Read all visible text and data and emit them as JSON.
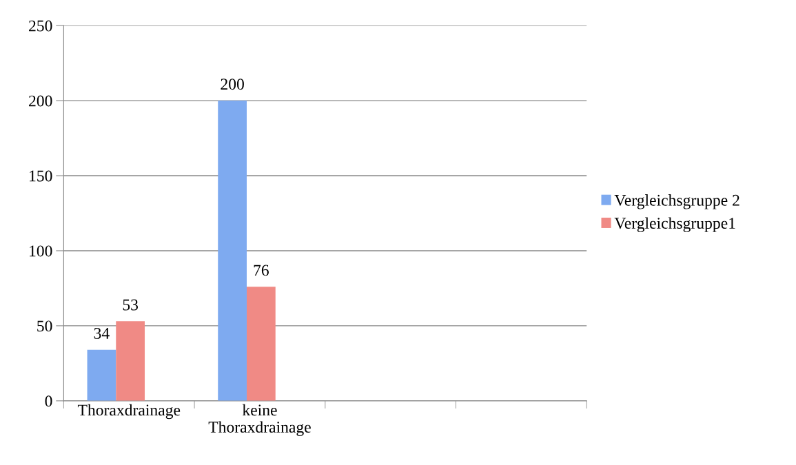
{
  "chart_data": {
    "type": "bar",
    "categories": [
      "Thoraxdrainage",
      "keine\nThoraxdrainage",
      null,
      null
    ],
    "series": [
      {
        "name": "Vergleichsgruppe 2",
        "color": "#7eaaf0",
        "values": [
          34,
          200,
          null,
          null
        ]
      },
      {
        "name": "Vergleichsgruppe1",
        "color": "#f08a85",
        "values": [
          53,
          76,
          null,
          null
        ]
      }
    ],
    "ylim": [
      0,
      250
    ],
    "yticks": [
      0,
      50,
      100,
      150,
      200,
      250
    ],
    "grid": "y",
    "legend": "right",
    "data_labels": true
  }
}
